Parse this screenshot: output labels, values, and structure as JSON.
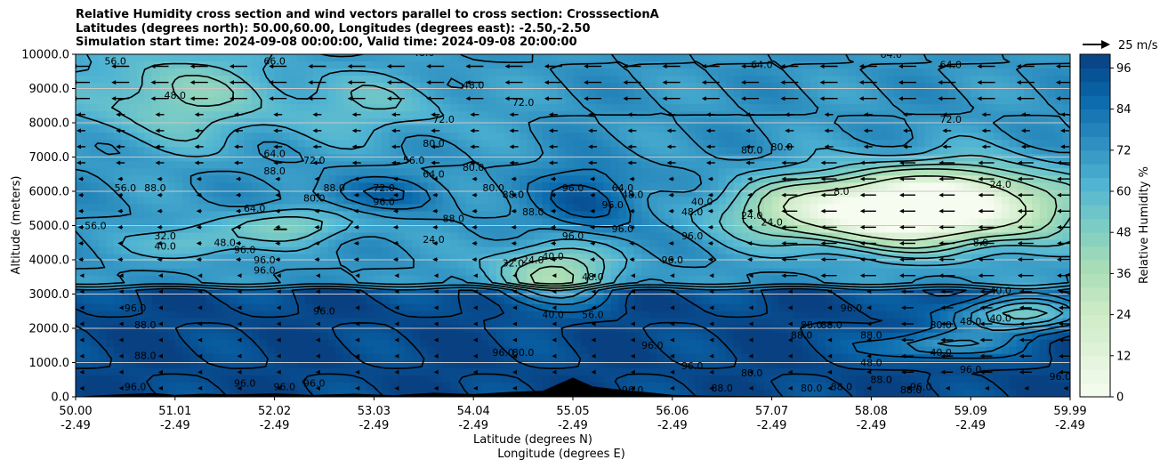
{
  "title": {
    "line1": "Relative Humidity cross section and wind vectors parallel to cross section: CrosssectionA",
    "line2": "Latitudes (degrees north): 50.00,60.00, Longitudes (degrees east): -2.50,-2.50",
    "line3": "Simulation start time: 2024-09-08 00:00:00, Valid time: 2024-09-08 20:00:00"
  },
  "colors": {
    "scale": [
      "#f7fcf0",
      "#e0f3db",
      "#ccebc5",
      "#a8ddb5",
      "#7bccc4",
      "#4eb3d3",
      "#2b8cbe",
      "#0868ac",
      "#084081"
    ],
    "contour": "#000000",
    "terrain": "#000000",
    "grid": "#c8c8c8"
  },
  "chart_data": {
    "type": "heatmap",
    "variable": "Relative Humidity %",
    "ylabel": "Altitude (meters)",
    "xlabel_line1": "Latitude (degrees N)",
    "xlabel_line2": "Longitude (degrees E)",
    "ylim": [
      0,
      10000
    ],
    "y_ticks": [
      "0.0",
      "1000.0",
      "2000.0",
      "3000.0",
      "4000.0",
      "5000.0",
      "6000.0",
      "7000.0",
      "8000.0",
      "9000.0",
      "10000.0"
    ],
    "x_ticks": [
      {
        "lat": "50.00",
        "lon": "-2.49"
      },
      {
        "lat": "51.01",
        "lon": "-2.49"
      },
      {
        "lat": "52.02",
        "lon": "-2.49"
      },
      {
        "lat": "53.03",
        "lon": "-2.49"
      },
      {
        "lat": "54.04",
        "lon": "-2.49"
      },
      {
        "lat": "55.05",
        "lon": "-2.49"
      },
      {
        "lat": "56.06",
        "lon": "-2.49"
      },
      {
        "lat": "57.07",
        "lon": "-2.49"
      },
      {
        "lat": "58.08",
        "lon": "-2.49"
      },
      {
        "lat": "59.09",
        "lon": "-2.49"
      },
      {
        "lat": "59.99",
        "lon": "-2.49"
      }
    ],
    "colorbar": {
      "label": "Relative Humidity %",
      "ticks": [
        "0",
        "12",
        "24",
        "36",
        "48",
        "60",
        "72",
        "84",
        "96"
      ],
      "range": [
        0,
        100
      ]
    },
    "quiver_key": "25 m/s",
    "grid": true,
    "contour_labels": [
      {
        "text": "56.0",
        "x": 0.04,
        "y": 9.7
      },
      {
        "text": "66.0",
        "x": 0.2,
        "y": 9.7
      },
      {
        "text": "48.0",
        "x": 0.35,
        "y": 9.95
      },
      {
        "text": "48.0",
        "x": 0.1,
        "y": 8.7
      },
      {
        "text": "48.0",
        "x": 0.4,
        "y": 9.0
      },
      {
        "text": "72.0",
        "x": 0.45,
        "y": 8.5
      },
      {
        "text": "72.0",
        "x": 0.37,
        "y": 8.0
      },
      {
        "text": "64.0",
        "x": 0.69,
        "y": 9.6
      },
      {
        "text": "64.0",
        "x": 0.82,
        "y": 9.9
      },
      {
        "text": "64.0",
        "x": 0.88,
        "y": 9.6
      },
      {
        "text": "72.0",
        "x": 0.88,
        "y": 8.0
      },
      {
        "text": "80.0",
        "x": 0.36,
        "y": 7.3
      },
      {
        "text": "80.0",
        "x": 0.4,
        "y": 6.6
      },
      {
        "text": "80.0",
        "x": 0.68,
        "y": 7.1
      },
      {
        "text": "64.0",
        "x": 0.2,
        "y": 7.0
      },
      {
        "text": "72.0",
        "x": 0.24,
        "y": 6.8
      },
      {
        "text": "56.0",
        "x": 0.34,
        "y": 6.8
      },
      {
        "text": "64.0",
        "x": 0.36,
        "y": 6.4
      },
      {
        "text": "56.0",
        "x": 0.05,
        "y": 6.0
      },
      {
        "text": "88.0",
        "x": 0.08,
        "y": 6.0
      },
      {
        "text": "88.0",
        "x": 0.2,
        "y": 6.5
      },
      {
        "text": "88.0",
        "x": 0.26,
        "y": 6.0
      },
      {
        "text": "80.0",
        "x": 0.24,
        "y": 5.7
      },
      {
        "text": "72.0",
        "x": 0.31,
        "y": 6.0
      },
      {
        "text": "64.0",
        "x": 0.18,
        "y": 5.4
      },
      {
        "text": "96.0",
        "x": 0.31,
        "y": 5.6
      },
      {
        "text": "96.0",
        "x": 0.5,
        "y": 6.0
      },
      {
        "text": "88.0",
        "x": 0.44,
        "y": 5.8
      },
      {
        "text": "80.0",
        "x": 0.42,
        "y": 6.0
      },
      {
        "text": "96.0",
        "x": 0.54,
        "y": 5.5
      },
      {
        "text": "64.0",
        "x": 0.55,
        "y": 6.0
      },
      {
        "text": "48.0",
        "x": 0.56,
        "y": 5.8
      },
      {
        "text": "40.0",
        "x": 0.63,
        "y": 5.6
      },
      {
        "text": "48.0",
        "x": 0.62,
        "y": 5.3
      },
      {
        "text": "24.0",
        "x": 0.68,
        "y": 5.2
      },
      {
        "text": "24.0",
        "x": 0.7,
        "y": 5.0
      },
      {
        "text": "24.0",
        "x": 0.93,
        "y": 6.1
      },
      {
        "text": "8.0",
        "x": 0.77,
        "y": 5.9
      },
      {
        "text": "8.0",
        "x": 0.91,
        "y": 4.4
      },
      {
        "text": "56.0",
        "x": 0.02,
        "y": 4.9
      },
      {
        "text": "32.0",
        "x": 0.09,
        "y": 4.6
      },
      {
        "text": "40.0",
        "x": 0.09,
        "y": 4.3
      },
      {
        "text": "48.0",
        "x": 0.15,
        "y": 4.4
      },
      {
        "text": "96.0",
        "x": 0.17,
        "y": 4.2
      },
      {
        "text": "96.0",
        "x": 0.19,
        "y": 3.9
      },
      {
        "text": "88.0",
        "x": 0.38,
        "y": 5.1
      },
      {
        "text": "24.0",
        "x": 0.36,
        "y": 4.5
      },
      {
        "text": "96.0",
        "x": 0.5,
        "y": 4.6
      },
      {
        "text": "96.0",
        "x": 0.55,
        "y": 4.8
      },
      {
        "text": "96.0",
        "x": 0.62,
        "y": 4.6
      },
      {
        "text": "32.0",
        "x": 0.44,
        "y": 3.8
      },
      {
        "text": "24.0",
        "x": 0.46,
        "y": 3.9
      },
      {
        "text": "40.0",
        "x": 0.48,
        "y": 4.0
      },
      {
        "text": "48.0",
        "x": 0.52,
        "y": 3.4
      },
      {
        "text": "40.0",
        "x": 0.48,
        "y": 2.3
      },
      {
        "text": "56.0",
        "x": 0.52,
        "y": 2.3
      },
      {
        "text": "96.0",
        "x": 0.19,
        "y": 3.6
      },
      {
        "text": "96.0",
        "x": 0.25,
        "y": 2.4
      },
      {
        "text": "96.0",
        "x": 0.06,
        "y": 2.5
      },
      {
        "text": "88.0",
        "x": 0.07,
        "y": 2.0
      },
      {
        "text": "88.0",
        "x": 0.07,
        "y": 1.1
      },
      {
        "text": "96.0",
        "x": 0.43,
        "y": 1.2
      },
      {
        "text": "80.0",
        "x": 0.45,
        "y": 1.2
      },
      {
        "text": "96.0",
        "x": 0.58,
        "y": 1.4
      },
      {
        "text": "96.0",
        "x": 0.62,
        "y": 0.8
      },
      {
        "text": "96.0",
        "x": 0.06,
        "y": 0.2
      },
      {
        "text": "96.0",
        "x": 0.17,
        "y": 0.3
      },
      {
        "text": "96.0",
        "x": 0.21,
        "y": 0.2
      },
      {
        "text": "96.0",
        "x": 0.24,
        "y": 0.3
      },
      {
        "text": "96.0",
        "x": 0.56,
        "y": 0.1
      },
      {
        "text": "88.0",
        "x": 0.65,
        "y": 0.15
      },
      {
        "text": "80.0",
        "x": 0.68,
        "y": 0.6
      },
      {
        "text": "80.0",
        "x": 0.74,
        "y": 0.15
      },
      {
        "text": "88.0",
        "x": 0.77,
        "y": 0.2
      },
      {
        "text": "88.0",
        "x": 0.81,
        "y": 0.4
      },
      {
        "text": "88.0",
        "x": 0.84,
        "y": 0.1
      },
      {
        "text": "48.0",
        "x": 0.8,
        "y": 0.9
      },
      {
        "text": "96.0",
        "x": 0.78,
        "y": 2.5
      },
      {
        "text": "88.0",
        "x": 0.73,
        "y": 1.7
      },
      {
        "text": "88.0",
        "x": 0.74,
        "y": 2.0
      },
      {
        "text": "88.0",
        "x": 0.76,
        "y": 2.0
      },
      {
        "text": "88.0",
        "x": 0.8,
        "y": 1.7
      },
      {
        "text": "80.0",
        "x": 0.87,
        "y": 2.0
      },
      {
        "text": "48.0",
        "x": 0.9,
        "y": 2.1
      },
      {
        "text": "40.0",
        "x": 0.93,
        "y": 3.0
      },
      {
        "text": "40.0",
        "x": 0.93,
        "y": 2.2
      },
      {
        "text": "40.0",
        "x": 0.87,
        "y": 1.2
      },
      {
        "text": "96.0",
        "x": 0.9,
        "y": 0.7
      },
      {
        "text": "96.0",
        "x": 0.85,
        "y": 0.2
      },
      {
        "text": "96.0",
        "x": 0.99,
        "y": 0.5
      },
      {
        "text": "96.0",
        "x": 0.6,
        "y": 3.9
      },
      {
        "text": "88.0",
        "x": 0.46,
        "y": 5.3
      },
      {
        "text": "80.0",
        "x": 0.71,
        "y": 7.2
      }
    ]
  }
}
